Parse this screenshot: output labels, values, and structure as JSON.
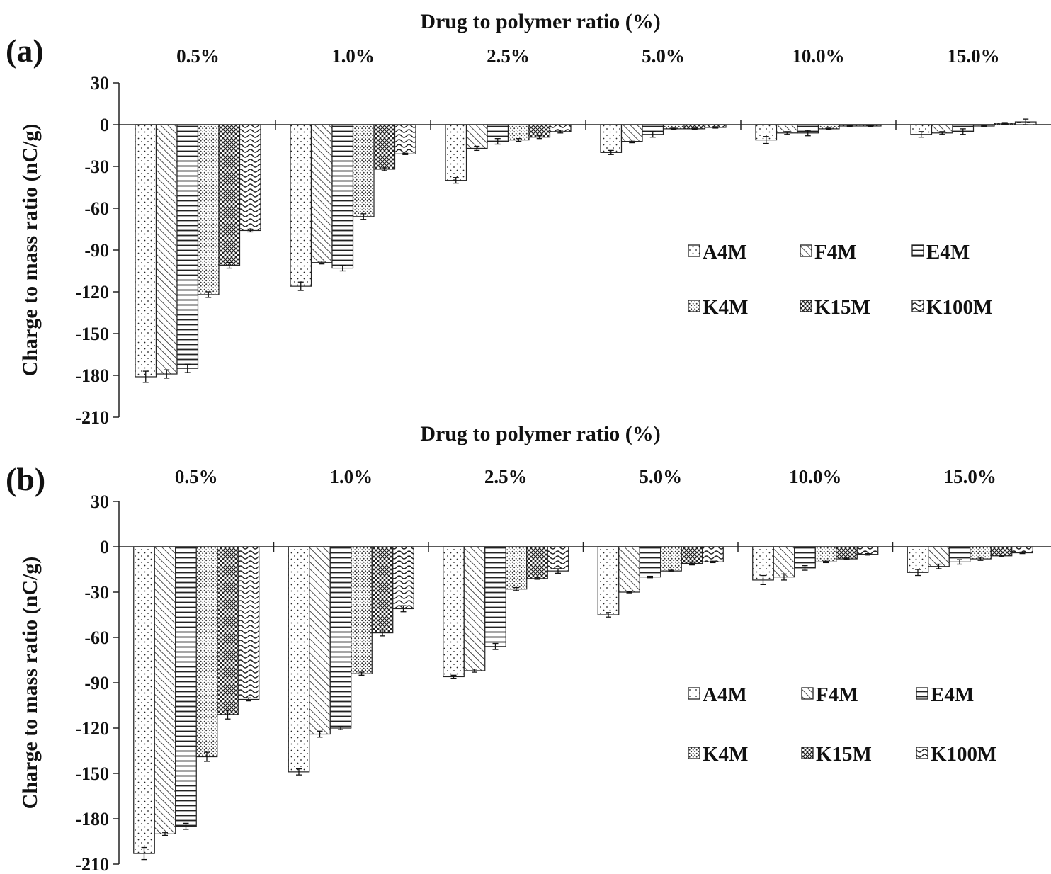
{
  "chart_data": [
    {
      "type": "bar",
      "panel": "(a)",
      "title": "Drug to polymer ratio (%)",
      "xlabel": "Drug to polymer ratio (%)",
      "ylabel": "Charge to mass ratio (nC/g)",
      "categories": [
        "0.5%",
        "1.0%",
        "2.5%",
        "5.0%",
        "10.0%",
        "15.0%"
      ],
      "ylim": [
        -210,
        30
      ],
      "yticks": [
        30,
        0,
        -30,
        -60,
        -90,
        -120,
        -150,
        -180,
        -210
      ],
      "grid": false,
      "legend_position": "right",
      "series": [
        {
          "name": "A4M",
          "pattern": "dots",
          "values": [
            -181,
            -116,
            -40,
            -20,
            -11,
            -7
          ],
          "errors": [
            4,
            3,
            2,
            1.5,
            2.5,
            2
          ]
        },
        {
          "name": "F4M",
          "pattern": "diagonal",
          "values": [
            -179,
            -99,
            -17,
            -12,
            -6,
            -6
          ],
          "errors": [
            3,
            1,
            1.5,
            1,
            1,
            1
          ]
        },
        {
          "name": "E4M",
          "pattern": "horizontal",
          "values": [
            -175,
            -103,
            -12,
            -7,
            -6,
            -5
          ],
          "errors": [
            3,
            2,
            2,
            2,
            2,
            2
          ]
        },
        {
          "name": "K4M",
          "pattern": "dense-dots",
          "values": [
            -122,
            -66,
            -11,
            -3,
            -3,
            -1
          ],
          "errors": [
            2,
            2,
            1,
            0.5,
            0.5,
            0.5
          ]
        },
        {
          "name": "K15M",
          "pattern": "crosshatch",
          "values": [
            -101,
            -32,
            -9,
            -3,
            -1,
            1
          ],
          "errors": [
            2,
            1,
            1,
            0.5,
            0.5,
            0.5
          ]
        },
        {
          "name": "K100M",
          "pattern": "waves",
          "values": [
            -76,
            -21,
            -5,
            -2,
            -1,
            2
          ],
          "errors": [
            1,
            0.5,
            1,
            0.5,
            0.5,
            2
          ]
        }
      ]
    },
    {
      "type": "bar",
      "panel": "(b)",
      "title": "Drug to polymer ratio (%)",
      "xlabel": "Drug to polymer ratio (%)",
      "ylabel": "Charge to mass ratio (nC/g)",
      "categories": [
        "0.5%",
        "1.0%",
        "2.5%",
        "5.0%",
        "10.0%",
        "15.0%"
      ],
      "ylim": [
        -210,
        30
      ],
      "yticks": [
        30,
        0,
        -30,
        -60,
        -90,
        -120,
        -150,
        -180,
        -210
      ],
      "grid": false,
      "legend_position": "right",
      "series": [
        {
          "name": "A4M",
          "pattern": "dots",
          "values": [
            -203,
            -149,
            -86,
            -45,
            -22,
            -17
          ],
          "errors": [
            4,
            2,
            1,
            1.5,
            3,
            2
          ]
        },
        {
          "name": "F4M",
          "pattern": "diagonal",
          "values": [
            -190,
            -124,
            -82,
            -30,
            -20,
            -13
          ],
          "errors": [
            1,
            2,
            1,
            0.5,
            2,
            1.5
          ]
        },
        {
          "name": "E4M",
          "pattern": "horizontal",
          "values": [
            -185,
            -120,
            -66,
            -20,
            -14,
            -10
          ],
          "errors": [
            2,
            1,
            2,
            0.5,
            1.5,
            1.5
          ]
        },
        {
          "name": "K4M",
          "pattern": "dense-dots",
          "values": [
            -139,
            -84,
            -28,
            -16,
            -10,
            -8
          ],
          "errors": [
            3,
            1,
            1,
            0.5,
            0.5,
            1
          ]
        },
        {
          "name": "K15M",
          "pattern": "crosshatch",
          "values": [
            -111,
            -57,
            -21,
            -11,
            -8,
            -6
          ],
          "errors": [
            3,
            2,
            0.5,
            1,
            0.5,
            0.5
          ]
        },
        {
          "name": "K100M",
          "pattern": "waves",
          "values": [
            -101,
            -41,
            -16,
            -10,
            -5,
            -4
          ],
          "errors": [
            1,
            2,
            1.5,
            0.5,
            0.5,
            0.5
          ]
        }
      ]
    }
  ]
}
